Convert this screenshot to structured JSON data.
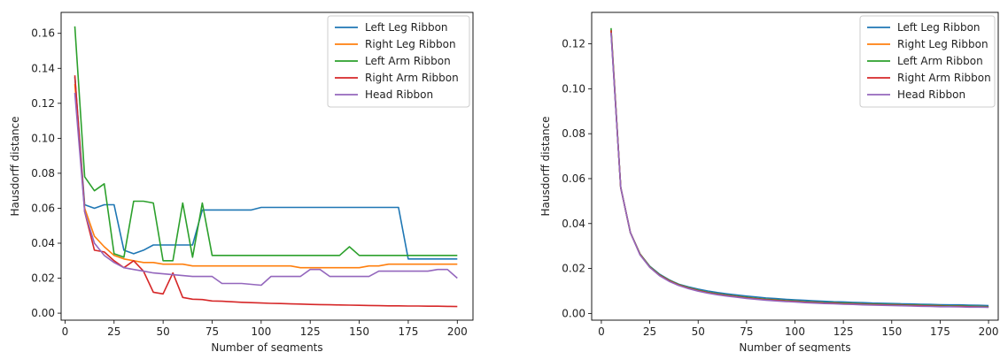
{
  "chart_data": [
    {
      "type": "line",
      "xlabel": "Number of segments",
      "ylabel": "Hausdorff distance",
      "xlim": [
        -2,
        208
      ],
      "ylim": [
        -0.004,
        0.172
      ],
      "xticks": [
        0,
        25,
        50,
        75,
        100,
        125,
        150,
        175,
        200
      ],
      "yticks": [
        0.0,
        0.02,
        0.04,
        0.06,
        0.08,
        0.1,
        0.12,
        0.14,
        0.16
      ],
      "ytick_format": 2,
      "legend_position": "top-right",
      "grid": false,
      "x": [
        5,
        10,
        15,
        20,
        25,
        30,
        35,
        40,
        45,
        50,
        55,
        60,
        65,
        70,
        75,
        80,
        85,
        90,
        95,
        100,
        105,
        110,
        115,
        120,
        125,
        130,
        135,
        140,
        145,
        150,
        155,
        160,
        165,
        170,
        175,
        180,
        185,
        190,
        195,
        200
      ],
      "series": [
        {
          "name": "Left Leg Ribbon",
          "color": "#1f77b4",
          "values": [
            0.135,
            0.062,
            0.06,
            0.062,
            0.062,
            0.036,
            0.034,
            0.036,
            0.039,
            0.039,
            0.039,
            0.039,
            0.039,
            0.059,
            0.059,
            0.059,
            0.059,
            0.059,
            0.059,
            0.0605,
            0.0605,
            0.0605,
            0.0605,
            0.0605,
            0.0605,
            0.0605,
            0.0605,
            0.0605,
            0.0605,
            0.0605,
            0.0605,
            0.0605,
            0.0605,
            0.0605,
            0.031,
            0.031,
            0.031,
            0.031,
            0.031,
            0.031
          ]
        },
        {
          "name": "Right Leg Ribbon",
          "color": "#ff7f0e",
          "values": [
            0.131,
            0.06,
            0.044,
            0.038,
            0.033,
            0.031,
            0.03,
            0.029,
            0.029,
            0.028,
            0.028,
            0.028,
            0.027,
            0.027,
            0.027,
            0.027,
            0.027,
            0.027,
            0.027,
            0.027,
            0.027,
            0.027,
            0.027,
            0.026,
            0.026,
            0.026,
            0.026,
            0.026,
            0.026,
            0.026,
            0.027,
            0.027,
            0.028,
            0.028,
            0.028,
            0.028,
            0.028,
            0.028,
            0.028,
            0.028
          ]
        },
        {
          "name": "Left Arm Ribbon",
          "color": "#2ca02c",
          "values": [
            0.164,
            0.078,
            0.07,
            0.074,
            0.034,
            0.032,
            0.064,
            0.064,
            0.063,
            0.03,
            0.03,
            0.063,
            0.032,
            0.063,
            0.033,
            0.033,
            0.033,
            0.033,
            0.033,
            0.033,
            0.033,
            0.033,
            0.033,
            0.033,
            0.033,
            0.033,
            0.033,
            0.033,
            0.038,
            0.033,
            0.033,
            0.033,
            0.033,
            0.033,
            0.033,
            0.033,
            0.033,
            0.033,
            0.033,
            0.033
          ]
        },
        {
          "name": "Right Arm Ribbon",
          "color": "#d62728",
          "values": [
            0.136,
            0.058,
            0.036,
            0.035,
            0.03,
            0.026,
            0.03,
            0.024,
            0.012,
            0.011,
            0.023,
            0.009,
            0.008,
            0.0078,
            0.007,
            0.0068,
            0.0065,
            0.0062,
            0.006,
            0.0058,
            0.0056,
            0.0055,
            0.0053,
            0.0052,
            0.005,
            0.0049,
            0.0048,
            0.0047,
            0.0046,
            0.0045,
            0.0044,
            0.0043,
            0.0042,
            0.0042,
            0.0041,
            0.0041,
            0.004,
            0.004,
            0.0039,
            0.0038
          ]
        },
        {
          "name": "Head Ribbon",
          "color": "#9467bd",
          "values": [
            0.126,
            0.058,
            0.04,
            0.033,
            0.029,
            0.026,
            0.025,
            0.024,
            0.023,
            0.0225,
            0.022,
            0.0215,
            0.021,
            0.021,
            0.021,
            0.017,
            0.017,
            0.017,
            0.0165,
            0.016,
            0.021,
            0.021,
            0.021,
            0.021,
            0.025,
            0.025,
            0.021,
            0.021,
            0.021,
            0.021,
            0.021,
            0.024,
            0.024,
            0.024,
            0.024,
            0.024,
            0.024,
            0.025,
            0.025,
            0.02
          ]
        }
      ]
    },
    {
      "type": "line",
      "xlabel": "Number of segments",
      "ylabel": "Hausdorff distance",
      "xlim": [
        -5,
        205
      ],
      "ylim": [
        -0.003,
        0.134
      ],
      "xticks": [
        0,
        25,
        50,
        75,
        100,
        125,
        150,
        175,
        200
      ],
      "yticks": [
        0.0,
        0.02,
        0.04,
        0.06,
        0.08,
        0.1,
        0.12
      ],
      "ytick_format": 2,
      "legend_position": "top-right",
      "grid": false,
      "x": [
        5,
        10,
        15,
        20,
        25,
        30,
        35,
        40,
        45,
        50,
        55,
        60,
        65,
        70,
        75,
        80,
        85,
        90,
        95,
        100,
        105,
        110,
        115,
        120,
        125,
        130,
        135,
        140,
        145,
        150,
        155,
        160,
        165,
        170,
        175,
        180,
        185,
        190,
        195,
        200
      ],
      "series": [
        {
          "name": "Left Leg Ribbon",
          "color": "#1f77b4",
          "values": [
            0.125,
            0.056,
            0.036,
            0.0265,
            0.021,
            0.0175,
            0.015,
            0.013,
            0.0118,
            0.0108,
            0.01,
            0.0093,
            0.0087,
            0.0082,
            0.0077,
            0.0073,
            0.0069,
            0.0066,
            0.0063,
            0.006,
            0.0058,
            0.0056,
            0.0054,
            0.0052,
            0.0051,
            0.0049,
            0.0048,
            0.0046,
            0.0045,
            0.0044,
            0.0043,
            0.0042,
            0.0041,
            0.004,
            0.0039,
            0.0038,
            0.0038,
            0.0037,
            0.0036,
            0.0035
          ]
        },
        {
          "name": "Right Leg Ribbon",
          "color": "#ff7f0e",
          "values": [
            0.126,
            0.056,
            0.036,
            0.0264,
            0.0208,
            0.0172,
            0.0147,
            0.0128,
            0.0114,
            0.0103,
            0.0094,
            0.0087,
            0.0081,
            0.0076,
            0.0071,
            0.0067,
            0.0063,
            0.006,
            0.0057,
            0.0055,
            0.0052,
            0.005,
            0.0048,
            0.0047,
            0.0045,
            0.0044,
            0.0042,
            0.0041,
            0.004,
            0.0039,
            0.0038,
            0.0037,
            0.0036,
            0.0035,
            0.0034,
            0.0033,
            0.0033,
            0.0032,
            0.0031,
            0.003
          ]
        },
        {
          "name": "Left Arm Ribbon",
          "color": "#2ca02c",
          "values": [
            0.127,
            0.056,
            0.036,
            0.0264,
            0.0208,
            0.0172,
            0.0147,
            0.0128,
            0.0114,
            0.0103,
            0.0094,
            0.0087,
            0.0081,
            0.0076,
            0.0071,
            0.0067,
            0.0063,
            0.006,
            0.0057,
            0.0055,
            0.0052,
            0.005,
            0.0048,
            0.0047,
            0.0045,
            0.0044,
            0.0042,
            0.0041,
            0.004,
            0.0039,
            0.0038,
            0.0037,
            0.0036,
            0.0035,
            0.0034,
            0.0033,
            0.0033,
            0.0032,
            0.0031,
            0.003
          ]
        },
        {
          "name": "Right Arm Ribbon",
          "color": "#d62728",
          "values": [
            0.126,
            0.056,
            0.036,
            0.0262,
            0.0206,
            0.017,
            0.0145,
            0.0126,
            0.0112,
            0.0101,
            0.0092,
            0.0085,
            0.0079,
            0.0074,
            0.0069,
            0.0065,
            0.0061,
            0.0058,
            0.0055,
            0.0053,
            0.005,
            0.0048,
            0.0046,
            0.0045,
            0.0043,
            0.0042,
            0.004,
            0.0039,
            0.0038,
            0.0037,
            0.0036,
            0.0035,
            0.0034,
            0.0033,
            0.0032,
            0.0031,
            0.0031,
            0.003,
            0.0029,
            0.0028
          ]
        },
        {
          "name": "Head Ribbon",
          "color": "#9467bd",
          "values": [
            0.125,
            0.056,
            0.036,
            0.026,
            0.0205,
            0.0168,
            0.0143,
            0.0124,
            0.011,
            0.0099,
            0.009,
            0.0083,
            0.0077,
            0.0072,
            0.0067,
            0.0063,
            0.0059,
            0.0056,
            0.0053,
            0.0051,
            0.0048,
            0.0046,
            0.0044,
            0.0043,
            0.0041,
            0.004,
            0.0038,
            0.0037,
            0.0036,
            0.0035,
            0.0034,
            0.0033,
            0.0032,
            0.0031,
            0.003,
            0.003,
            0.0029,
            0.0028,
            0.0028,
            0.0027
          ]
        }
      ]
    }
  ]
}
